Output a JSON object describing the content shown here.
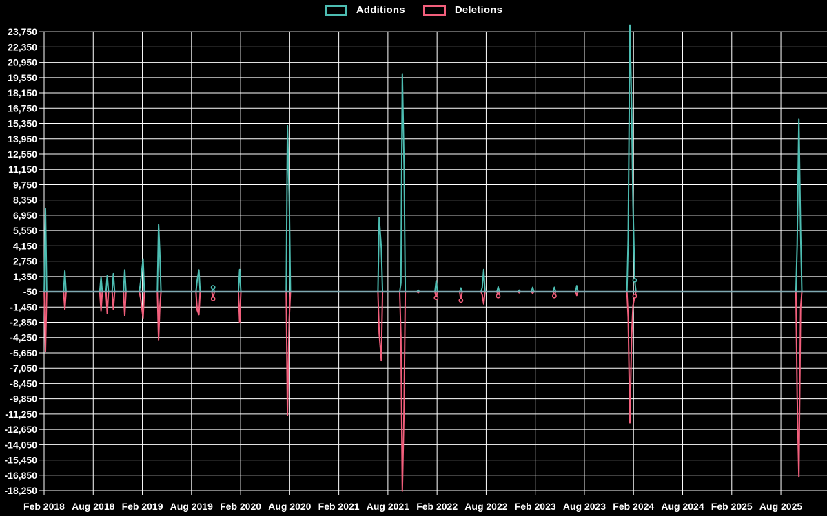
{
  "legend": {
    "additions_label": "Additions",
    "deletions_label": "Deletions"
  },
  "colors": {
    "background": "#000000",
    "additions": "#4dbdb2",
    "deletions": "#f25f7c",
    "baseline": "#7fa9b2",
    "grid": "#ffffff",
    "text": "#ffffff"
  },
  "chart_data": {
    "type": "line",
    "title": "",
    "xlabel": "",
    "ylabel": "",
    "grid": true,
    "legend_position": "top-center",
    "y_axis": {
      "max": 23750,
      "min": -18250,
      "step": 1400,
      "tick_labels": [
        "23,750",
        "22,350",
        "20,950",
        "19,550",
        "18,150",
        "16,750",
        "15,350",
        "13,950",
        "12,550",
        "11,150",
        "9,750",
        "8,350",
        "6,950",
        "5,550",
        "4,150",
        "2,750",
        "1,350",
        "-50",
        "-1,450",
        "-2,850",
        "-4,250",
        "-5,650",
        "-7,050",
        "-8,450",
        "-9,850",
        "-11,250",
        "-12,650",
        "-14,050",
        "-15,450",
        "-16,850",
        "-18,250"
      ],
      "tick_values": [
        23750,
        22350,
        20950,
        19550,
        18150,
        16750,
        15350,
        13950,
        12550,
        11150,
        9750,
        8350,
        6950,
        5550,
        4150,
        2750,
        1350,
        -50,
        -1450,
        -2850,
        -4250,
        -5650,
        -7050,
        -8450,
        -9850,
        -11250,
        -12650,
        -14050,
        -15450,
        -16850,
        -18250
      ],
      "baseline_value": 0
    },
    "x_axis": {
      "tick_labels": [
        "Feb 2018",
        "Aug 2018",
        "Feb 2019",
        "Aug 2019",
        "Feb 2020",
        "Aug 2020",
        "Feb 2021",
        "Aug 2021",
        "Feb 2022",
        "Aug 2022",
        "Feb 2023",
        "Aug 2023",
        "Feb 2024",
        "Aug 2024",
        "Feb 2025",
        "Aug 2025"
      ],
      "start": "Feb 2018",
      "interval_months": 6
    },
    "series": [
      {
        "name": "Additions",
        "color": "#4dbdb2",
        "points": [
          {
            "date": "Feb 2018",
            "t": 0.17,
            "v": 7600
          },
          {
            "date": "Apr 2018",
            "t": 2.53,
            "v": 1900
          },
          {
            "date": "Sep 2018",
            "t": 6.95,
            "v": 1350
          },
          {
            "date": "Oct 2018",
            "t": 7.71,
            "v": 1500
          },
          {
            "date": "Oct 2018",
            "t": 8.46,
            "v": 1650
          },
          {
            "date": "Dec 2018",
            "t": 9.85,
            "v": 2000
          },
          {
            "date": "Jan 2019",
            "t": 11.79,
            "v": 900
          },
          {
            "date": "Feb 2019",
            "t": 12.09,
            "v": 3000
          },
          {
            "date": "Apr 2019",
            "t": 13.98,
            "v": 6150
          },
          {
            "date": "Apr 2019",
            "t": 14.13,
            "v": 3650
          },
          {
            "date": "Aug 2019",
            "t": 18.7,
            "v": 1050
          },
          {
            "date": "Sep 2019",
            "t": 18.91,
            "v": 2000
          },
          {
            "date": "Oct 2019",
            "t": 20.64,
            "v": 400,
            "mk": true
          },
          {
            "date": "Feb 2020",
            "t": 23.88,
            "v": 2030
          },
          {
            "date": "Jul 2020",
            "t": 29.73,
            "v": 15200
          },
          {
            "date": "Aug 2020",
            "t": 29.94,
            "v": 8800
          },
          {
            "date": "Jul 2021",
            "t": 40.93,
            "v": 6800
          },
          {
            "date": "Jul 2021",
            "t": 41.19,
            "v": 4000
          },
          {
            "date": "Sep 2021",
            "t": 43.59,
            "v": 800
          },
          {
            "date": "Oct 2021",
            "t": 43.76,
            "v": 19950
          },
          {
            "date": "Oct 2021",
            "t": 43.97,
            "v": 11600
          },
          {
            "date": "Nov 2021",
            "t": 45.7,
            "v": 150
          },
          {
            "date": "Feb 2022",
            "t": 47.89,
            "v": 1000
          },
          {
            "date": "May 2022",
            "t": 50.92,
            "v": 350
          },
          {
            "date": "Jul 2022",
            "t": 53.53,
            "v": 400
          },
          {
            "date": "Jul 2022",
            "t": 53.7,
            "v": 2030
          },
          {
            "date": "Sep 2022",
            "t": 55.47,
            "v": 450
          },
          {
            "date": "Dec 2022",
            "t": 58.04,
            "v": 150
          },
          {
            "date": "Jan 2023",
            "t": 59.68,
            "v": 410
          },
          {
            "date": "Apr 2023",
            "t": 62.33,
            "v": 410
          },
          {
            "date": "Jul 2023",
            "t": 65.07,
            "v": 560
          },
          {
            "date": "Jan 2024",
            "t": 71.35,
            "v": 4800
          },
          {
            "date": "Jan 2024",
            "t": 71.56,
            "v": 24400
          },
          {
            "date": "Feb 2024",
            "t": 71.77,
            "v": 16900
          },
          {
            "date": "Feb 2024",
            "t": 71.94,
            "v": 7900
          },
          {
            "date": "Feb 2024",
            "t": 72.15,
            "v": 1050,
            "mk": true
          },
          {
            "date": "Oct 2025",
            "t": 91.99,
            "v": 4240
          },
          {
            "date": "Oct 2025",
            "t": 92.2,
            "v": 15800
          },
          {
            "date": "Oct 2025",
            "t": 92.41,
            "v": 5400
          }
        ]
      },
      {
        "name": "Deletions",
        "color": "#f25f7c",
        "points": [
          {
            "date": "Feb 2018",
            "t": 0.17,
            "v": -5450
          },
          {
            "date": "Apr 2018",
            "t": 2.53,
            "v": -1600
          },
          {
            "date": "Sep 2018",
            "t": 6.95,
            "v": -1750
          },
          {
            "date": "Oct 2018",
            "t": 7.71,
            "v": -2000
          },
          {
            "date": "Oct 2018",
            "t": 8.46,
            "v": -1600
          },
          {
            "date": "Dec 2018",
            "t": 9.85,
            "v": -2200
          },
          {
            "date": "Jan 2019",
            "t": 11.79,
            "v": -600
          },
          {
            "date": "Feb 2019",
            "t": 12.09,
            "v": -2400
          },
          {
            "date": "Apr 2019",
            "t": 13.98,
            "v": -4400
          },
          {
            "date": "Apr 2019",
            "t": 14.13,
            "v": -1500
          },
          {
            "date": "Aug 2019",
            "t": 18.7,
            "v": -1700
          },
          {
            "date": "Sep 2019",
            "t": 18.91,
            "v": -2100
          },
          {
            "date": "Oct 2019",
            "t": 20.64,
            "v": -650,
            "mk": true
          },
          {
            "date": "Feb 2020",
            "t": 23.88,
            "v": -2840
          },
          {
            "date": "Jul 2020",
            "t": 29.73,
            "v": -11300
          },
          {
            "date": "Aug 2020",
            "t": 29.94,
            "v": -2500
          },
          {
            "date": "Jul 2021",
            "t": 40.93,
            "v": -3800
          },
          {
            "date": "Jul 2021",
            "t": 41.19,
            "v": -6300
          },
          {
            "date": "Sep 2021",
            "t": 43.59,
            "v": -4100
          },
          {
            "date": "Oct 2021",
            "t": 43.76,
            "v": -18250
          },
          {
            "date": "Oct 2021",
            "t": 43.97,
            "v": -10700
          },
          {
            "date": "Nov 2021",
            "t": 45.7,
            "v": -100
          },
          {
            "date": "Feb 2022",
            "t": 47.89,
            "v": -550,
            "mk": true
          },
          {
            "date": "May 2022",
            "t": 50.92,
            "v": -800,
            "mk": true
          },
          {
            "date": "Jul 2022",
            "t": 53.53,
            "v": -300
          },
          {
            "date": "Jul 2022",
            "t": 53.7,
            "v": -1120
          },
          {
            "date": "Sep 2022",
            "t": 55.47,
            "v": -390,
            "mk": true
          },
          {
            "date": "Dec 2022",
            "t": 58.04,
            "v": -100
          },
          {
            "date": "Jan 2023",
            "t": 59.68,
            "v": -150
          },
          {
            "date": "Apr 2023",
            "t": 62.33,
            "v": -390,
            "mk": true
          },
          {
            "date": "Jul 2023",
            "t": 65.07,
            "v": -330
          },
          {
            "date": "Jan 2024",
            "t": 71.35,
            "v": -2380
          },
          {
            "date": "Jan 2024",
            "t": 71.56,
            "v": -12000
          },
          {
            "date": "Feb 2024",
            "t": 71.77,
            "v": -4050
          },
          {
            "date": "Feb 2024",
            "t": 71.94,
            "v": -1250
          },
          {
            "date": "Feb 2024",
            "t": 72.15,
            "v": -400,
            "mk": true
          },
          {
            "date": "Oct 2025",
            "t": 91.99,
            "v": -9470
          },
          {
            "date": "Oct 2025",
            "t": 92.2,
            "v": -16950
          },
          {
            "date": "Oct 2025",
            "t": 92.41,
            "v": -1500
          }
        ]
      }
    ]
  }
}
